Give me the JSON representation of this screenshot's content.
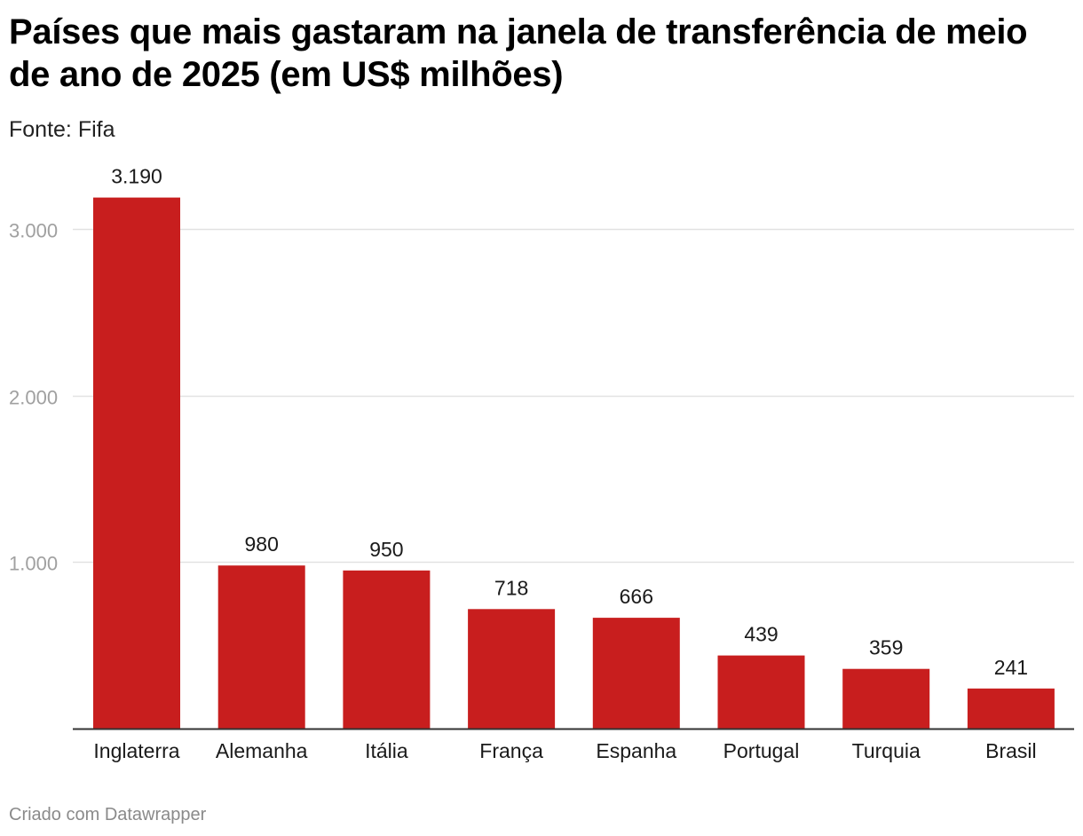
{
  "colors": {
    "bar": "#c81e1e",
    "grid": "#e2e2e2",
    "axis": "#333333"
  },
  "chart_data": {
    "type": "bar",
    "title": "Países que mais gastaram na janela de transferência de meio de ano de 2025 (em US$ milhões)",
    "subtitle": "Fonte: Fifa",
    "footer": "Criado com Datawrapper",
    "categories": [
      "Inglaterra",
      "Alemanha",
      "Itália",
      "França",
      "Espanha",
      "Portugal",
      "Turquia",
      "Brasil"
    ],
    "values": [
      3190,
      980,
      950,
      718,
      666,
      439,
      359,
      241
    ],
    "value_labels": [
      "3.190",
      "980",
      "950",
      "718",
      "666",
      "439",
      "359",
      "241"
    ],
    "y_ticks": [
      {
        "value": 1000,
        "label": "1.000"
      },
      {
        "value": 2000,
        "label": "2.000"
      },
      {
        "value": 3000,
        "label": "3.000"
      }
    ],
    "ylim": [
      0,
      3190
    ],
    "xlabel": "",
    "ylabel": "",
    "grid": true
  }
}
